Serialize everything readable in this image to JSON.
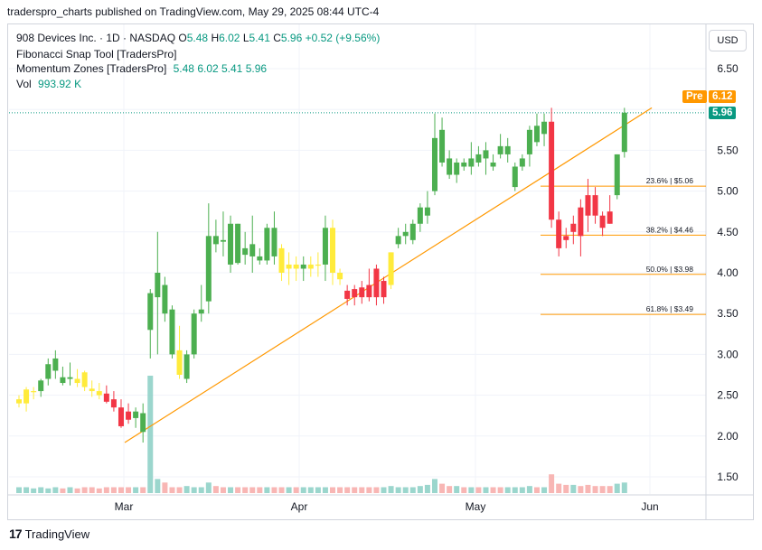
{
  "header": {
    "text": "traderspro_charts published on TradingView.com, May 29, 2025 08:44 UTC-4"
  },
  "legend": {
    "main_title": "908 Devices Inc. · 1D · NASDAQ",
    "o_label": "O",
    "o_val": "5.48",
    "h_label": "H",
    "h_val": "6.02",
    "l_label": "L",
    "l_val": "5.41",
    "c_label": "C",
    "c_val": "5.96",
    "change": "+0.52 (+9.56%)",
    "fib_label": "Fibonacci Snap Tool [TradersPro]",
    "mom_label": "Momentum Zones [TradersPro]",
    "mom_vals": "5.48  6.02  5.41  5.96",
    "vol_label": "Vol",
    "vol_val": "993.92 K"
  },
  "currency_button": "USD",
  "pre_label": "Pre",
  "pre_value": "6.12",
  "last_value": "5.96",
  "footer": {
    "brand": "TradingView"
  },
  "colors": {
    "up": "#4caf50",
    "down": "#f23645",
    "neutral": "#ffeb3b",
    "fib": "#ff9800",
    "grid": "#f0f3fa"
  },
  "chart_data": {
    "type": "candlestick",
    "y_ticks": [
      "6.50",
      "6.00",
      "5.50",
      "5.00",
      "4.50",
      "4.00",
      "3.50",
      "3.00",
      "2.50",
      "2.00",
      "1.50"
    ],
    "x_labels": [
      "Mar",
      "Apr",
      "May",
      "Jun"
    ],
    "ylim": [
      1.2,
      6.7
    ],
    "fib_levels": [
      {
        "label": "23.6% | $5.06",
        "value": 5.06
      },
      {
        "label": "38.2% | $4.46",
        "value": 4.46
      },
      {
        "label": "50.0% | $3.98",
        "value": 3.98
      },
      {
        "label": "61.8% | $3.49",
        "value": 3.49
      }
    ],
    "trendline": {
      "from": {
        "index": 19,
        "value": 1.92
      },
      "to": {
        "index": 87,
        "value": 6.02
      }
    },
    "last_price": 5.96,
    "candles": [
      {
        "o": 2.4,
        "h": 2.5,
        "l": 2.35,
        "c": 2.45,
        "z": "y"
      },
      {
        "o": 2.4,
        "h": 2.6,
        "l": 2.3,
        "c": 2.57,
        "z": "y"
      },
      {
        "o": 2.55,
        "h": 2.6,
        "l": 2.45,
        "c": 2.55,
        "z": "y"
      },
      {
        "o": 2.55,
        "h": 2.7,
        "l": 2.48,
        "c": 2.68,
        "z": "g"
      },
      {
        "o": 2.7,
        "h": 2.95,
        "l": 2.62,
        "c": 2.88,
        "z": "g"
      },
      {
        "o": 2.8,
        "h": 3.05,
        "l": 2.7,
        "c": 2.95,
        "z": "g"
      },
      {
        "o": 2.72,
        "h": 2.85,
        "l": 2.62,
        "c": 2.65,
        "z": "g"
      },
      {
        "o": 2.7,
        "h": 2.9,
        "l": 2.62,
        "c": 2.72,
        "z": "g"
      },
      {
        "o": 2.7,
        "h": 2.82,
        "l": 2.6,
        "c": 2.65,
        "z": "y"
      },
      {
        "o": 2.78,
        "h": 2.8,
        "l": 2.55,
        "c": 2.6,
        "z": "y"
      },
      {
        "o": 2.58,
        "h": 2.68,
        "l": 2.48,
        "c": 2.55,
        "z": "y"
      },
      {
        "o": 2.55,
        "h": 2.65,
        "l": 2.45,
        "c": 2.5,
        "z": "y"
      },
      {
        "o": 2.52,
        "h": 2.62,
        "l": 2.4,
        "c": 2.42,
        "z": "r"
      },
      {
        "o": 2.45,
        "h": 2.55,
        "l": 2.3,
        "c": 2.35,
        "z": "r"
      },
      {
        "o": 2.35,
        "h": 2.45,
        "l": 2.1,
        "c": 2.12,
        "z": "r"
      },
      {
        "o": 2.3,
        "h": 2.4,
        "l": 2.15,
        "c": 2.2,
        "z": "r"
      },
      {
        "o": 2.22,
        "h": 2.35,
        "l": 2.1,
        "c": 2.3,
        "z": "g"
      },
      {
        "o": 2.28,
        "h": 2.4,
        "l": 1.92,
        "c": 2.05,
        "z": "g"
      },
      {
        "o": 3.3,
        "h": 3.8,
        "l": 2.95,
        "c": 3.75,
        "z": "g"
      },
      {
        "o": 3.7,
        "h": 4.5,
        "l": 3.0,
        "c": 4.0,
        "z": "g"
      },
      {
        "o": 3.85,
        "h": 3.95,
        "l": 3.4,
        "c": 3.5,
        "z": "g"
      },
      {
        "o": 3.55,
        "h": 3.6,
        "l": 2.95,
        "c": 3.0,
        "z": "g"
      },
      {
        "o": 3.05,
        "h": 3.35,
        "l": 2.7,
        "c": 2.75,
        "z": "y"
      },
      {
        "o": 2.7,
        "h": 3.05,
        "l": 2.65,
        "c": 3.0,
        "z": "g"
      },
      {
        "o": 3.0,
        "h": 3.55,
        "l": 2.95,
        "c": 3.5,
        "z": "g"
      },
      {
        "o": 3.5,
        "h": 3.85,
        "l": 3.4,
        "c": 3.55,
        "z": "g"
      },
      {
        "o": 3.65,
        "h": 4.85,
        "l": 3.5,
        "c": 4.45,
        "z": "g"
      },
      {
        "o": 4.45,
        "h": 4.65,
        "l": 4.25,
        "c": 4.35,
        "z": "g"
      },
      {
        "o": 4.4,
        "h": 4.75,
        "l": 4.2,
        "c": 4.38,
        "z": "g"
      },
      {
        "o": 4.1,
        "h": 4.7,
        "l": 4.0,
        "c": 4.6,
        "z": "g"
      },
      {
        "o": 4.6,
        "h": 4.6,
        "l": 4.1,
        "c": 4.12,
        "z": "g"
      },
      {
        "o": 4.3,
        "h": 4.5,
        "l": 4.1,
        "c": 4.22,
        "z": "g"
      },
      {
        "o": 4.35,
        "h": 4.7,
        "l": 4.0,
        "c": 4.2,
        "z": "g"
      },
      {
        "o": 4.2,
        "h": 4.3,
        "l": 4.1,
        "c": 4.15,
        "z": "g"
      },
      {
        "o": 4.15,
        "h": 4.6,
        "l": 4.1,
        "c": 4.55,
        "z": "g"
      },
      {
        "o": 4.55,
        "h": 4.75,
        "l": 4.1,
        "c": 4.2,
        "z": "g"
      },
      {
        "o": 4.3,
        "h": 4.35,
        "l": 3.9,
        "c": 4.0,
        "z": "y"
      },
      {
        "o": 4.05,
        "h": 4.25,
        "l": 3.85,
        "c": 4.1,
        "z": "y"
      },
      {
        "o": 4.1,
        "h": 4.2,
        "l": 3.9,
        "c": 4.05,
        "z": "y"
      },
      {
        "o": 4.05,
        "h": 4.2,
        "l": 3.9,
        "c": 4.1,
        "z": "g"
      },
      {
        "o": 4.05,
        "h": 4.2,
        "l": 3.95,
        "c": 4.1,
        "z": "y"
      },
      {
        "o": 4.1,
        "h": 4.25,
        "l": 3.95,
        "c": 4.1,
        "z": "y"
      },
      {
        "o": 4.1,
        "h": 4.7,
        "l": 3.9,
        "c": 4.55,
        "z": "g"
      },
      {
        "o": 4.55,
        "h": 4.65,
        "l": 3.85,
        "c": 4.0,
        "z": "y"
      },
      {
        "o": 4.0,
        "h": 4.05,
        "l": 3.85,
        "c": 3.92,
        "z": "y"
      },
      {
        "o": 3.78,
        "h": 3.85,
        "l": 3.6,
        "c": 3.68,
        "z": "r"
      },
      {
        "o": 3.8,
        "h": 3.85,
        "l": 3.6,
        "c": 3.7,
        "z": "r"
      },
      {
        "o": 3.82,
        "h": 3.9,
        "l": 3.62,
        "c": 3.7,
        "z": "r"
      },
      {
        "o": 3.85,
        "h": 4.05,
        "l": 3.65,
        "c": 3.7,
        "z": "r"
      },
      {
        "o": 4.05,
        "h": 4.1,
        "l": 3.6,
        "c": 3.7,
        "z": "r"
      },
      {
        "o": 3.7,
        "h": 3.95,
        "l": 3.62,
        "c": 3.9,
        "z": "r"
      },
      {
        "o": 3.85,
        "h": 4.25,
        "l": 3.8,
        "c": 4.25,
        "z": "y"
      },
      {
        "o": 4.35,
        "h": 4.55,
        "l": 4.3,
        "c": 4.45,
        "z": "g"
      },
      {
        "o": 4.45,
        "h": 4.6,
        "l": 4.35,
        "c": 4.5,
        "z": "g"
      },
      {
        "o": 4.4,
        "h": 4.65,
        "l": 4.35,
        "c": 4.6,
        "z": "g"
      },
      {
        "o": 4.6,
        "h": 4.85,
        "l": 4.5,
        "c": 4.8,
        "z": "g"
      },
      {
        "o": 4.7,
        "h": 5.0,
        "l": 4.6,
        "c": 4.8,
        "z": "g"
      },
      {
        "o": 5.0,
        "h": 5.95,
        "l": 4.95,
        "c": 5.65,
        "z": "g"
      },
      {
        "o": 5.75,
        "h": 5.9,
        "l": 5.3,
        "c": 5.35,
        "z": "g"
      },
      {
        "o": 5.4,
        "h": 5.5,
        "l": 5.15,
        "c": 5.2,
        "z": "g"
      },
      {
        "o": 5.2,
        "h": 5.4,
        "l": 5.1,
        "c": 5.35,
        "z": "g"
      },
      {
        "o": 5.35,
        "h": 5.4,
        "l": 5.25,
        "c": 5.3,
        "z": "g"
      },
      {
        "o": 5.3,
        "h": 5.6,
        "l": 5.2,
        "c": 5.4,
        "z": "g"
      },
      {
        "o": 5.45,
        "h": 5.55,
        "l": 5.3,
        "c": 5.35,
        "z": "g"
      },
      {
        "o": 5.4,
        "h": 5.6,
        "l": 5.2,
        "c": 5.5,
        "z": "g"
      },
      {
        "o": 5.35,
        "h": 5.45,
        "l": 5.25,
        "c": 5.3,
        "z": "g"
      },
      {
        "o": 5.55,
        "h": 5.7,
        "l": 5.4,
        "c": 5.45,
        "z": "g"
      },
      {
        "o": 5.45,
        "h": 5.65,
        "l": 5.35,
        "c": 5.55,
        "z": "g"
      },
      {
        "o": 5.05,
        "h": 5.35,
        "l": 5.0,
        "c": 5.3,
        "z": "g"
      },
      {
        "o": 5.3,
        "h": 5.45,
        "l": 5.25,
        "c": 5.4,
        "z": "g"
      },
      {
        "o": 5.45,
        "h": 5.8,
        "l": 5.3,
        "c": 5.75,
        "z": "g"
      },
      {
        "o": 5.8,
        "h": 5.95,
        "l": 5.55,
        "c": 5.6,
        "z": "g"
      },
      {
        "o": 5.7,
        "h": 5.95,
        "l": 5.55,
        "c": 5.85,
        "z": "g"
      },
      {
        "o": 5.85,
        "h": 6.02,
        "l": 4.55,
        "c": 4.65,
        "z": "r"
      },
      {
        "o": 4.65,
        "h": 4.75,
        "l": 4.2,
        "c": 4.3,
        "z": "r"
      },
      {
        "o": 4.45,
        "h": 4.55,
        "l": 4.3,
        "c": 4.4,
        "z": "r"
      },
      {
        "o": 4.5,
        "h": 4.7,
        "l": 4.35,
        "c": 4.6,
        "z": "r"
      },
      {
        "o": 4.8,
        "h": 4.9,
        "l": 4.2,
        "c": 4.45,
        "z": "r"
      },
      {
        "o": 4.95,
        "h": 5.15,
        "l": 4.5,
        "c": 4.7,
        "z": "r"
      },
      {
        "o": 4.95,
        "h": 5.05,
        "l": 4.6,
        "c": 4.7,
        "z": "r"
      },
      {
        "o": 4.7,
        "h": 4.75,
        "l": 4.45,
        "c": 4.55,
        "z": "r"
      },
      {
        "o": 4.75,
        "h": 4.95,
        "l": 4.6,
        "c": 4.6,
        "z": "r"
      },
      {
        "o": 4.95,
        "h": 5.45,
        "l": 4.9,
        "c": 5.45,
        "z": "g"
      },
      {
        "o": 5.48,
        "h": 6.02,
        "l": 5.41,
        "c": 5.96,
        "z": "g"
      }
    ],
    "volume": [
      0.05,
      0.05,
      0.04,
      0.05,
      0.04,
      0.05,
      0.04,
      0.05,
      0.04,
      0.05,
      0.05,
      0.04,
      0.05,
      0.05,
      0.05,
      0.05,
      0.05,
      0.05,
      1.0,
      0.12,
      0.09,
      0.05,
      0.05,
      0.06,
      0.05,
      0.05,
      0.09,
      0.06,
      0.05,
      0.05,
      0.05,
      0.05,
      0.05,
      0.05,
      0.05,
      0.05,
      0.05,
      0.05,
      0.05,
      0.05,
      0.05,
      0.05,
      0.05,
      0.05,
      0.05,
      0.05,
      0.05,
      0.05,
      0.05,
      0.05,
      0.05,
      0.06,
      0.05,
      0.05,
      0.05,
      0.06,
      0.07,
      0.12,
      0.08,
      0.06,
      0.06,
      0.05,
      0.05,
      0.05,
      0.05,
      0.05,
      0.05,
      0.05,
      0.05,
      0.05,
      0.06,
      0.05,
      0.05,
      0.16,
      0.08,
      0.07,
      0.07,
      0.06,
      0.07,
      0.06,
      0.06,
      0.06,
      0.08,
      0.09
    ]
  }
}
